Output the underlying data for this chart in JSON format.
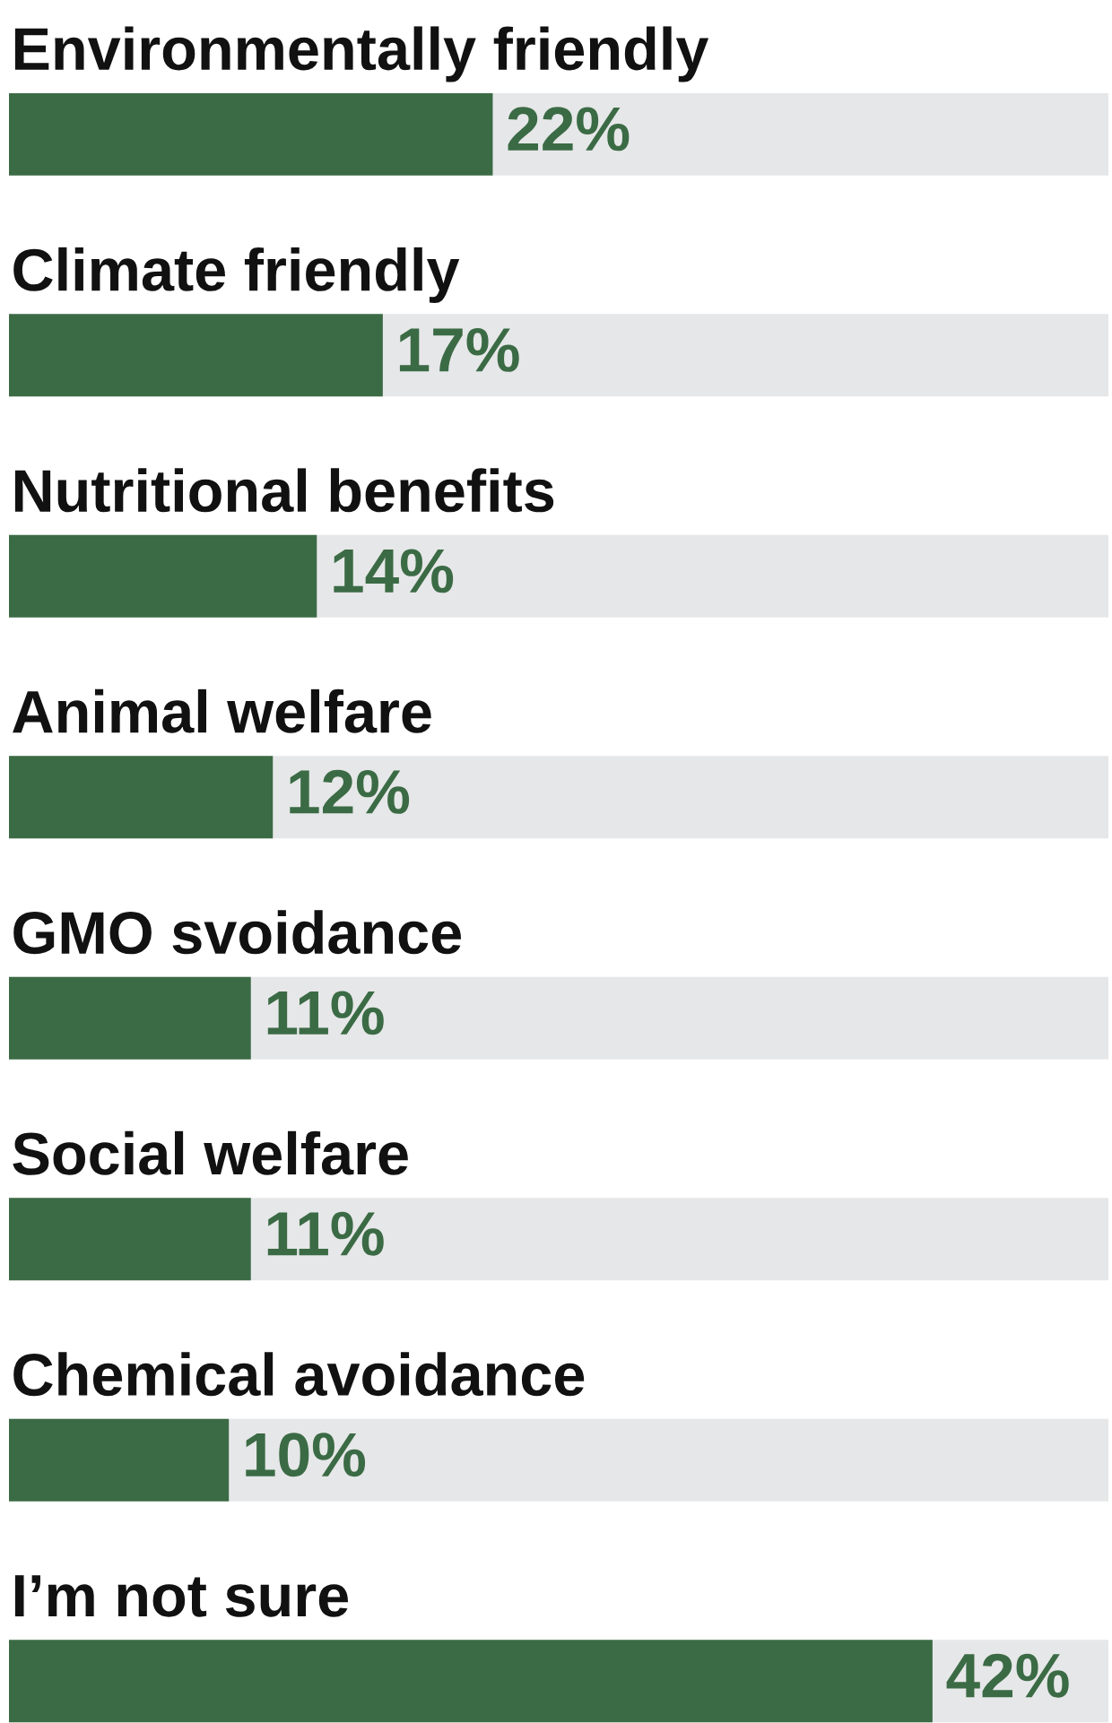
{
  "chart_data": {
    "type": "bar",
    "orientation": "horizontal",
    "categories": [
      "Environmentally friendly",
      "Climate friendly",
      "Nutritional benefits",
      "Animal welfare",
      "GMO svoidance",
      "Social welfare",
      "Chemical avoidance",
      "I’m not sure"
    ],
    "values": [
      22,
      17,
      14,
      12,
      11,
      11,
      10,
      42
    ],
    "value_labels": [
      "22%",
      "17%",
      "14%",
      "12%",
      "11%",
      "11%",
      "10%",
      "42%"
    ],
    "color": "#3b6b45",
    "xlim": [
      0,
      50
    ]
  }
}
